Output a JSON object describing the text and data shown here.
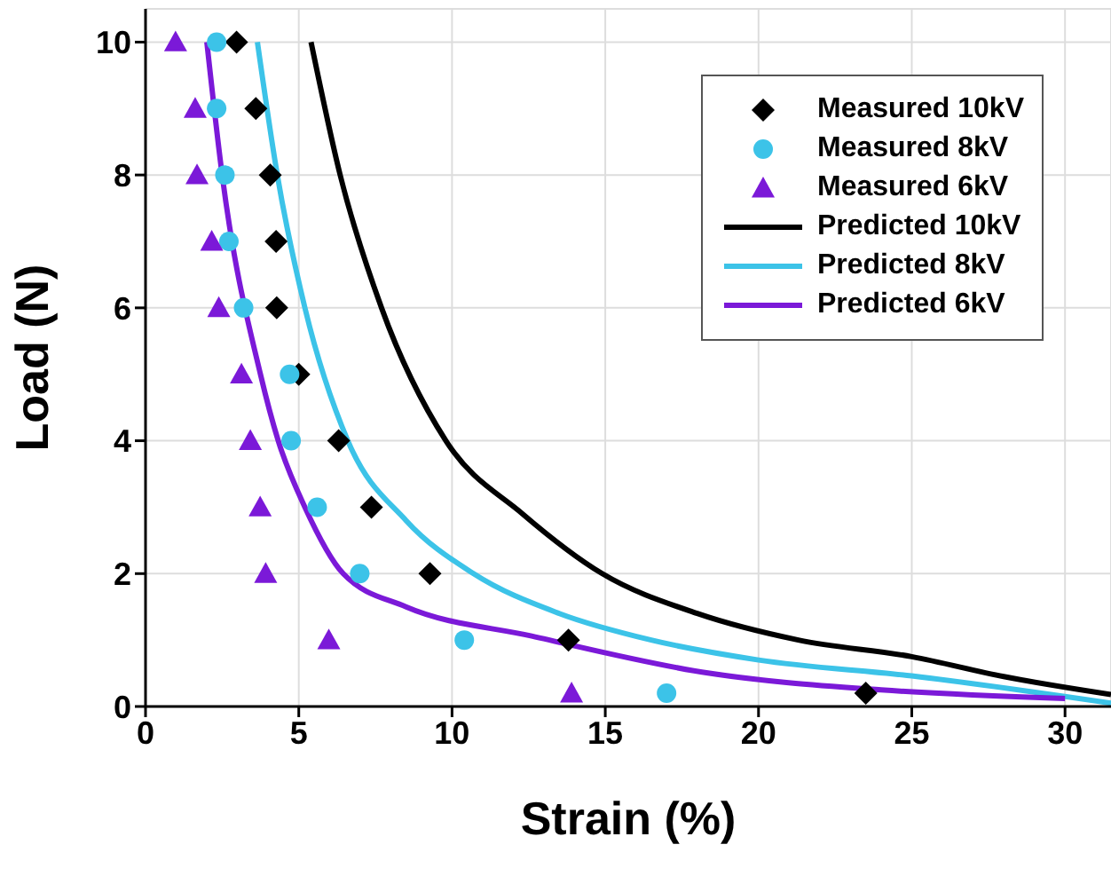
{
  "chart_data": {
    "type": "scatter",
    "xlabel": "Strain (%)",
    "ylabel": "Load (N)",
    "xlim": [
      0,
      31.5
    ],
    "ylim": [
      0,
      10.5
    ],
    "xticks": [
      0,
      5,
      10,
      15,
      20,
      25,
      30
    ],
    "yticks": [
      0,
      2,
      4,
      6,
      8,
      10
    ],
    "grid": true,
    "legend": "top right",
    "series": [
      {
        "name": "Measured 10kV",
        "marker": "diamond",
        "color": "#000000",
        "x": [
          2.97,
          3.6,
          4.07,
          4.26,
          4.28,
          5.0,
          6.3,
          7.37,
          9.28,
          13.8,
          23.5
        ],
        "values": [
          10,
          9,
          8,
          7,
          6,
          5,
          4,
          3,
          2,
          1,
          0.2
        ]
      },
      {
        "name": "Measured 8kV",
        "marker": "circle",
        "color": "#3cc3e8",
        "x": [
          2.32,
          2.32,
          2.59,
          2.72,
          3.2,
          4.7,
          4.75,
          5.6,
          6.99,
          10.4,
          17.0
        ],
        "values": [
          10,
          9,
          8,
          7,
          6,
          5,
          4,
          3,
          2,
          1,
          0.2
        ]
      },
      {
        "name": "Measured 6kV",
        "marker": "triangle",
        "color": "#7b19d8",
        "x": [
          0.98,
          1.62,
          1.68,
          2.16,
          2.39,
          3.13,
          3.42,
          3.74,
          3.92,
          5.98,
          13.9
        ],
        "values": [
          10,
          9,
          8,
          7,
          6,
          5,
          4,
          3,
          2,
          1,
          0.2
        ]
      },
      {
        "name": "Predicted 10kV",
        "type": "line",
        "color": "#000000",
        "x": [
          5.4,
          6.35,
          7.7,
          9.8,
          12.3,
          14.9,
          18,
          21.3,
          25,
          28,
          31.5
        ],
        "values": [
          10,
          8,
          6,
          4,
          2.9,
          2,
          1.4,
          1,
          0.75,
          0.45,
          0.18
        ]
      },
      {
        "name": "Predicted 8kV",
        "type": "line",
        "color": "#3cc3e8",
        "x": [
          3.65,
          4.3,
          5.2,
          6.6,
          8.5,
          10.7,
          13.5,
          16.5,
          20,
          25,
          31.5
        ],
        "values": [
          10,
          8,
          6,
          4,
          2.8,
          2,
          1.4,
          1,
          0.7,
          0.46,
          0.05
        ]
      },
      {
        "name": "Predicted 6kV",
        "type": "line",
        "color": "#7b19d8",
        "x": [
          2.0,
          2.5,
          3.75,
          4.33,
          5.2,
          6.45,
          8.5,
          12.6,
          18.4,
          24,
          30
        ],
        "values": [
          10,
          8,
          5,
          4,
          3,
          2,
          1.5,
          1.06,
          0.5,
          0.25,
          0.12
        ]
      }
    ]
  }
}
